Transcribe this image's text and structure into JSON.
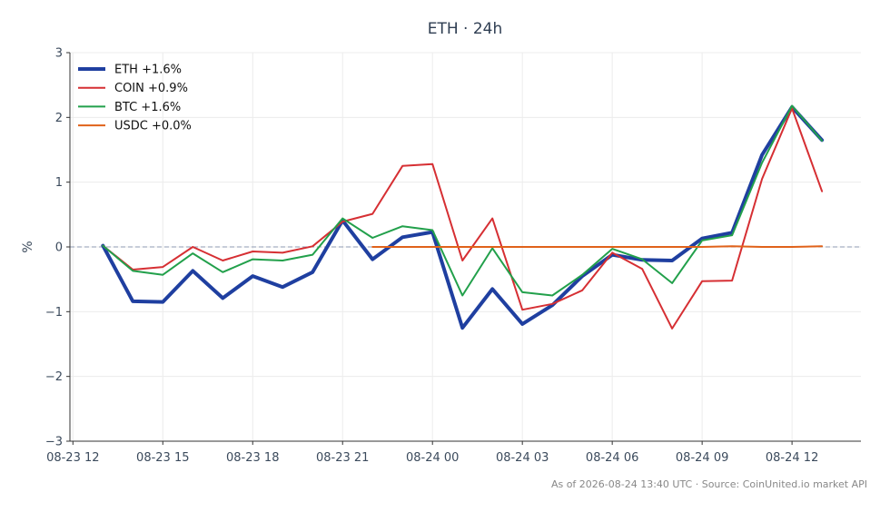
{
  "chart_data": {
    "type": "line",
    "title": "ETH · 24h",
    "ylabel": "%",
    "xlabel": "",
    "ylim": [
      -3,
      3
    ],
    "yticks": [
      -3,
      -2,
      -1,
      0,
      1,
      2,
      3
    ],
    "yticklabels": [
      "−3",
      "−2",
      "−1",
      "0",
      "1",
      "2",
      "3"
    ],
    "xticklabels": [
      "08-23 12",
      "08-23 15",
      "08-23 18",
      "08-23 21",
      "08-24 00",
      "08-24 03",
      "08-24 06",
      "08-24 09",
      "08-24 12"
    ],
    "x_hours": [
      13,
      14,
      15,
      16,
      17,
      18,
      19,
      20,
      21,
      22,
      23,
      24,
      25,
      26,
      27,
      28,
      29,
      30,
      31,
      32,
      33,
      34,
      35,
      36,
      37
    ],
    "grid": true,
    "legend": "top-left",
    "reference_line": 0,
    "series": [
      {
        "name": "ETH +1.6%",
        "color": "#1f3fa0",
        "values": [
          0.02,
          -0.84,
          -0.85,
          -0.37,
          -0.79,
          -0.45,
          -0.62,
          -0.39,
          0.41,
          -0.19,
          0.15,
          0.23,
          -1.25,
          -0.65,
          -1.19,
          -0.9,
          -0.45,
          -0.12,
          -0.2,
          -0.21,
          0.13,
          0.22,
          1.42,
          2.16,
          1.65
        ]
      },
      {
        "name": "COIN +0.9%",
        "color": "#d62f33",
        "values": [
          0.02,
          -0.35,
          -0.31,
          0.0,
          -0.21,
          -0.07,
          -0.09,
          0.01,
          0.39,
          0.51,
          1.25,
          1.28,
          -0.21,
          0.44,
          -0.97,
          -0.88,
          -0.67,
          -0.09,
          -0.34,
          -1.26,
          -0.53,
          -0.52,
          1.05,
          2.14,
          0.86
        ]
      },
      {
        "name": "BTC +1.6%",
        "color": "#22a04b",
        "values": [
          0.02,
          -0.37,
          -0.43,
          -0.1,
          -0.39,
          -0.19,
          -0.21,
          -0.12,
          0.44,
          0.14,
          0.32,
          0.26,
          -0.75,
          -0.02,
          -0.7,
          -0.75,
          -0.43,
          -0.03,
          -0.19,
          -0.56,
          0.1,
          0.18,
          1.3,
          2.18,
          1.64
        ]
      },
      {
        "name": "USDC +0.0%",
        "color": "#e0621a",
        "values": [
          null,
          null,
          null,
          null,
          null,
          null,
          null,
          null,
          null,
          0.0,
          0.0,
          0.0,
          0.0,
          0.0,
          0.0,
          0.0,
          0.0,
          0.0,
          0.0,
          0.0,
          0.0,
          0.01,
          0.0,
          0.0,
          0.01
        ]
      }
    ]
  },
  "footer": "As of 2026-08-24 13:40 UTC · Source: CoinUnited.io market API"
}
